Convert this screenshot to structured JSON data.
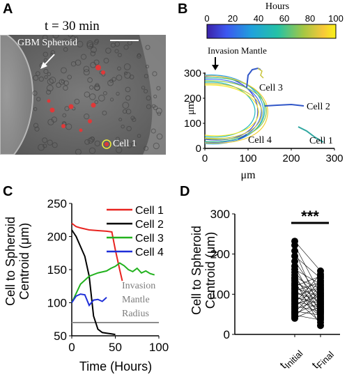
{
  "panels": {
    "a": {
      "label": "A",
      "time_label": "t = 30 min",
      "spheroid_label": "GBM Spheroid",
      "cell_label": "Cell 1"
    },
    "b": {
      "label": "B",
      "colorbar_title": "Hours",
      "colorbar_ticks": [
        "0",
        "20",
        "40",
        "60",
        "80",
        "100"
      ],
      "mantle_label": "Invasion Mantle",
      "ylabel": "μm",
      "xlabel": "μm",
      "x_ticks": [
        "0",
        "100",
        "200",
        "300"
      ],
      "y_ticks": [
        "0",
        "100",
        "200",
        "300"
      ],
      "cell_labels": [
        "Cell 3",
        "Cell 2",
        "Cell 4",
        "Cell 1"
      ]
    },
    "c": {
      "label": "C",
      "ylabel_line1": "Cell to Spheroid",
      "ylabel_line2": "Centroid (μm)",
      "xlabel": "Time (Hours)",
      "mantle_line1": "Invasion",
      "mantle_line2": "Mantle",
      "mantle_line3": "Radius"
    },
    "d": {
      "label": "D",
      "ylabel_line1": "Cell to Spheroid",
      "ylabel_line2": "Centroid (μm)",
      "significance": "***",
      "cat1_main": "t",
      "cat1_sub": "Initial",
      "cat2_main": "t",
      "cat2_sub": "Final"
    }
  },
  "colors": {
    "cell1": "#e8231f",
    "cell2": "#000000",
    "cell3": "#22b21e",
    "cell4": "#1f2fd8",
    "mantle": "#8c8c8c",
    "track_blue": "#3056c8",
    "track_teal": "#2fa7a0"
  },
  "chart_data": [
    {
      "type": "line",
      "panel": "C",
      "xlabel": "Time (Hours)",
      "ylabel": "Cell to Spheroid Centroid (μm)",
      "xlim": [
        0,
        100
      ],
      "ylim": [
        50,
        250
      ],
      "x_ticks": [
        0,
        50,
        100
      ],
      "y_ticks": [
        50,
        100,
        150,
        200,
        250
      ],
      "legend": "top-right",
      "series": [
        {
          "name": "Cell 1",
          "color": "#e8231f",
          "x": [
            0,
            5,
            10,
            20,
            30,
            40,
            46,
            50,
            55,
            58
          ],
          "y": [
            220,
            215,
            213,
            210,
            209,
            208,
            207,
            180,
            150,
            133
          ]
        },
        {
          "name": "Cell 2",
          "color": "#000000",
          "x": [
            0,
            5,
            10,
            15,
            20,
            25,
            30,
            35,
            40,
            45,
            50
          ],
          "y": [
            210,
            200,
            185,
            170,
            140,
            80,
            60,
            55,
            54,
            53,
            52
          ]
        },
        {
          "name": "Cell 3",
          "color": "#22b21e",
          "x": [
            0,
            10,
            20,
            30,
            40,
            45,
            50,
            55,
            60,
            65,
            70,
            75,
            80,
            85,
            90,
            95
          ],
          "y": [
            100,
            128,
            140,
            145,
            148,
            152,
            155,
            160,
            156,
            150,
            147,
            152,
            145,
            148,
            144,
            142
          ]
        },
        {
          "name": "Cell 4",
          "color": "#1f2fd8",
          "x": [
            0,
            5,
            10,
            15,
            20,
            25,
            30,
            35,
            40
          ],
          "y": [
            100,
            110,
            113,
            112,
            96,
            104,
            105,
            102,
            108
          ]
        }
      ],
      "reference_line": {
        "y": 70,
        "label": "Invasion Mantle Radius"
      }
    },
    {
      "type": "scatter",
      "panel": "D",
      "ylabel": "Cell to Spheroid Centroid (μm)",
      "categories": [
        "t Initial",
        "t Final"
      ],
      "ylim": [
        0,
        300
      ],
      "y_ticks": [
        0,
        100,
        200,
        300
      ],
      "significance": "***",
      "initial": [
        232,
        222,
        208,
        195,
        182,
        170,
        162,
        155,
        148,
        142,
        138,
        133,
        128,
        124,
        120,
        116,
        112,
        108,
        104,
        100,
        96,
        92,
        88,
        85,
        82,
        78,
        74,
        70,
        66,
        62,
        58,
        55,
        52,
        48,
        44,
        40
      ],
      "final": [
        158,
        150,
        145,
        140,
        134,
        130,
        125,
        121,
        117,
        113,
        110,
        106,
        103,
        100,
        97,
        94,
        91,
        88,
        85,
        82,
        79,
        76,
        73,
        70,
        67,
        64,
        61,
        58,
        55,
        52,
        48,
        44,
        40,
        36,
        30,
        22
      ]
    }
  ]
}
